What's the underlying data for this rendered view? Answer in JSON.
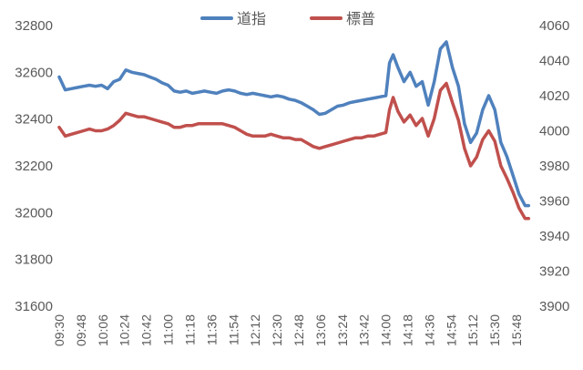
{
  "chart_data": {
    "type": "line",
    "title": "",
    "legend_position": "top-center",
    "grid": false,
    "x_ticks": [
      "09:30",
      "09:48",
      "10:06",
      "10:24",
      "10:42",
      "11:00",
      "11:18",
      "11:36",
      "11:54",
      "12:12",
      "12:30",
      "12:48",
      "13:06",
      "13:24",
      "13:42",
      "14:00",
      "14:18",
      "14:36",
      "14:54",
      "15:12",
      "15:30",
      "15:48"
    ],
    "y_left": {
      "label": "",
      "ticks": [
        31600,
        31800,
        32000,
        32200,
        32400,
        32600,
        32800
      ],
      "range": [
        31600,
        32800
      ]
    },
    "y_right": {
      "label": "",
      "ticks": [
        3900,
        3920,
        3940,
        3960,
        3980,
        4000,
        4020,
        4040,
        4060
      ],
      "range": [
        3900,
        4060
      ]
    },
    "series": [
      {
        "name": "道指",
        "axis": "left",
        "color": "#4f81bd",
        "x": [
          "09:30",
          "09:35",
          "09:40",
          "09:45",
          "09:50",
          "09:55",
          "10:00",
          "10:05",
          "10:10",
          "10:15",
          "10:20",
          "10:25",
          "10:30",
          "10:35",
          "10:40",
          "10:45",
          "10:50",
          "10:55",
          "11:00",
          "11:05",
          "11:10",
          "11:15",
          "11:20",
          "11:25",
          "11:30",
          "11:35",
          "11:40",
          "11:45",
          "11:50",
          "11:55",
          "12:00",
          "12:05",
          "12:10",
          "12:15",
          "12:20",
          "12:25",
          "12:30",
          "12:35",
          "12:40",
          "12:45",
          "12:50",
          "12:55",
          "13:00",
          "13:05",
          "13:10",
          "13:15",
          "13:20",
          "13:25",
          "13:30",
          "13:35",
          "13:40",
          "13:45",
          "13:50",
          "13:55",
          "14:00",
          "14:03",
          "14:06",
          "14:10",
          "14:15",
          "14:20",
          "14:25",
          "14:30",
          "14:35",
          "14:40",
          "14:45",
          "14:50",
          "14:55",
          "15:00",
          "15:05",
          "15:10",
          "15:15",
          "15:20",
          "15:25",
          "15:30",
          "15:35",
          "15:40",
          "15:45",
          "15:50",
          "15:55",
          "15:58"
        ],
        "values": [
          32580,
          32525,
          32530,
          32535,
          32540,
          32545,
          32540,
          32545,
          32530,
          32560,
          32570,
          32610,
          32600,
          32595,
          32590,
          32580,
          32570,
          32555,
          32545,
          32520,
          32515,
          32520,
          32510,
          32515,
          32520,
          32515,
          32510,
          32520,
          32525,
          32520,
          32510,
          32505,
          32510,
          32505,
          32500,
          32495,
          32500,
          32495,
          32485,
          32480,
          32470,
          32455,
          32440,
          32420,
          32425,
          32440,
          32455,
          32460,
          32470,
          32475,
          32480,
          32485,
          32490,
          32495,
          32500,
          32640,
          32675,
          32620,
          32560,
          32600,
          32540,
          32560,
          32460,
          32560,
          32700,
          32730,
          32620,
          32540,
          32380,
          32300,
          32340,
          32440,
          32500,
          32440,
          32300,
          32240,
          32160,
          32080,
          32030,
          32030
        ]
      },
      {
        "name": "標普",
        "axis": "right",
        "color": "#c0504d",
        "x": [
          "09:30",
          "09:35",
          "09:40",
          "09:45",
          "09:50",
          "09:55",
          "10:00",
          "10:05",
          "10:10",
          "10:15",
          "10:20",
          "10:25",
          "10:30",
          "10:35",
          "10:40",
          "10:45",
          "10:50",
          "10:55",
          "11:00",
          "11:05",
          "11:10",
          "11:15",
          "11:20",
          "11:25",
          "11:30",
          "11:35",
          "11:40",
          "11:45",
          "11:50",
          "11:55",
          "12:00",
          "12:05",
          "12:10",
          "12:15",
          "12:20",
          "12:25",
          "12:30",
          "12:35",
          "12:40",
          "12:45",
          "12:50",
          "12:55",
          "13:00",
          "13:05",
          "13:10",
          "13:15",
          "13:20",
          "13:25",
          "13:30",
          "13:35",
          "13:40",
          "13:45",
          "13:50",
          "13:55",
          "14:00",
          "14:03",
          "14:06",
          "14:10",
          "14:15",
          "14:20",
          "14:25",
          "14:30",
          "14:35",
          "14:40",
          "14:45",
          "14:50",
          "14:55",
          "15:00",
          "15:05",
          "15:10",
          "15:15",
          "15:20",
          "15:25",
          "15:30",
          "15:35",
          "15:40",
          "15:45",
          "15:50",
          "15:55",
          "15:58"
        ],
        "values": [
          4002,
          3997,
          3998,
          3999,
          4000,
          4001,
          4000,
          4000,
          4001,
          4003,
          4006,
          4010,
          4009,
          4008,
          4008,
          4007,
          4006,
          4005,
          4004,
          4002,
          4002,
          4003,
          4003,
          4004,
          4004,
          4004,
          4004,
          4004,
          4003,
          4002,
          4000,
          3998,
          3997,
          3997,
          3997,
          3998,
          3997,
          3996,
          3996,
          3995,
          3995,
          3993,
          3991,
          3990,
          3991,
          3992,
          3993,
          3994,
          3995,
          3996,
          3996,
          3997,
          3997,
          3998,
          3999,
          4012,
          4019,
          4011,
          4005,
          4009,
          4003,
          4007,
          3997,
          4007,
          4023,
          4027,
          4016,
          4006,
          3990,
          3980,
          3985,
          3995,
          4000,
          3994,
          3980,
          3973,
          3965,
          3956,
          3950,
          3950
        ]
      }
    ]
  }
}
